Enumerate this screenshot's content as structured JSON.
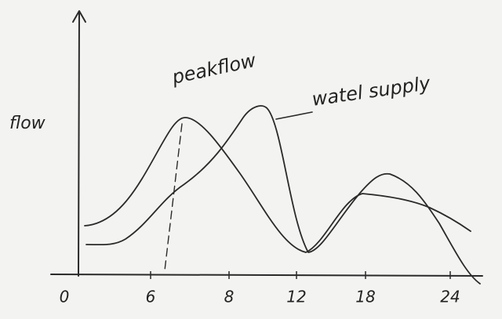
{
  "y_axis_label": "flow",
  "x_ticks": [
    "0",
    "6",
    "8",
    "12",
    "18",
    "24"
  ],
  "annotations": {
    "peak_flow": "peakflow",
    "water_supply": "watel supply"
  }
}
